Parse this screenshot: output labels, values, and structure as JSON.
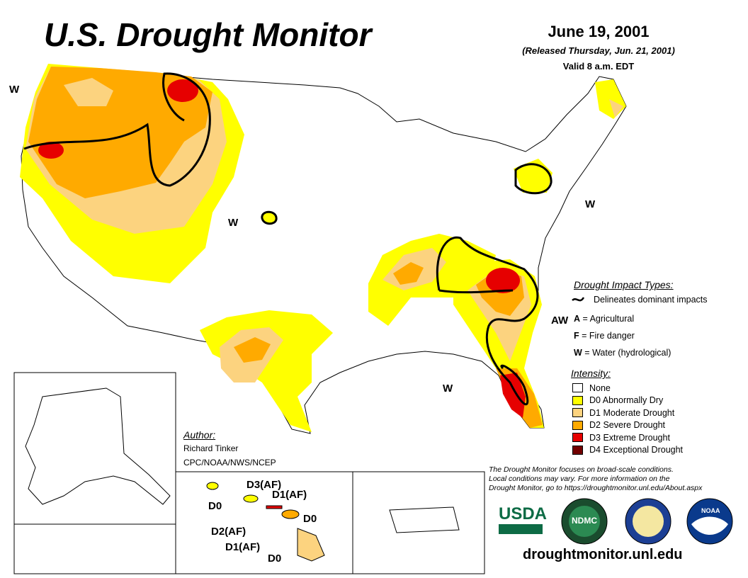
{
  "header": {
    "title": "U.S. Drought Monitor",
    "date": "June 19, 2001",
    "released": "(Released Thursday, Jun. 21, 2001)",
    "valid": "Valid 8 a.m. EDT"
  },
  "map_labels": {
    "w_northwest": "W",
    "w_plains": "W",
    "w_northeast": "W",
    "aw_southeast": "AW",
    "w_south": "W"
  },
  "hawaii_labels": {
    "d3af": "D3(AF)",
    "d1af_top": "D1(AF)",
    "d0_left": "D0",
    "d0_right": "D0",
    "d2af": "D2(AF)",
    "d1af_bottom": "D1(AF)",
    "d0_bottom": "D0"
  },
  "legend": {
    "impact_heading": "Drought Impact Types:",
    "impact_line": "Delineates dominant impacts",
    "impact_types": [
      {
        "code": "A",
        "sep": " = ",
        "text": "Agricultural"
      },
      {
        "code": "F",
        "sep": " = ",
        "text": "Fire danger"
      },
      {
        "code": "W",
        "sep": " = ",
        "text": "Water (hydrological)"
      }
    ],
    "intensity_heading": "Intensity:",
    "intensity": [
      {
        "label": "None",
        "color": "#ffffff"
      },
      {
        "label": "D0 Abnormally Dry",
        "color": "#ffff00"
      },
      {
        "label": "D1 Moderate Drought",
        "color": "#fcd37f"
      },
      {
        "label": "D2 Severe Drought",
        "color": "#ffaa00"
      },
      {
        "label": "D3 Extreme Drought",
        "color": "#e60000"
      },
      {
        "label": "D4 Exceptional Drought",
        "color": "#730000"
      }
    ]
  },
  "author": {
    "heading": "Author:",
    "name": "Richard Tinker",
    "org": "CPC/NOAA/NWS/NCEP"
  },
  "disclaimer": {
    "line1": "The Drought Monitor focuses on broad-scale conditions.",
    "line2": "Local conditions may vary. For more information on the",
    "line3": "Drought Monitor, go to https://droughtmonitor.unl.edu/About.aspx"
  },
  "logos": {
    "usda": "USDA",
    "ndmc": "NDMC",
    "noaa": "NOAA"
  },
  "footer_url": "droughtmonitor.unl.edu"
}
